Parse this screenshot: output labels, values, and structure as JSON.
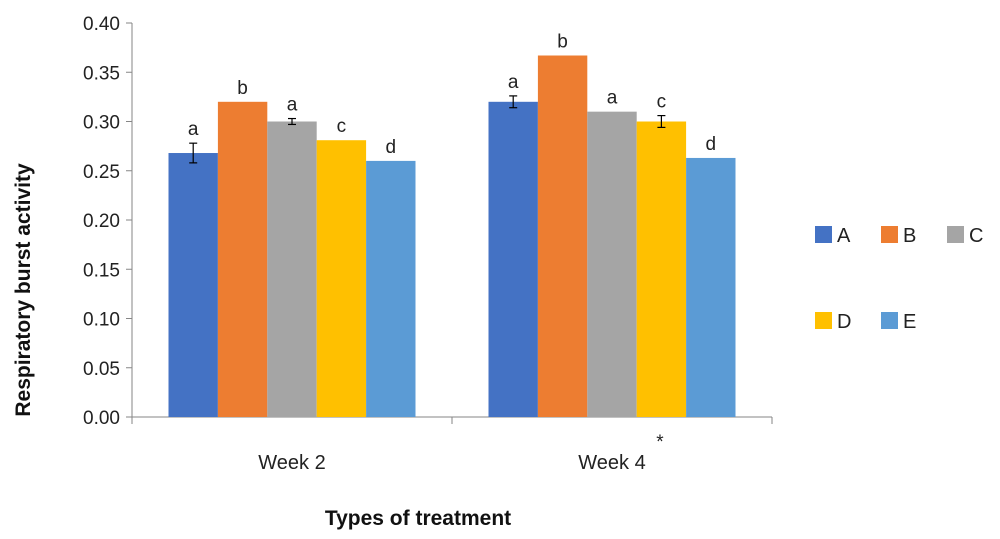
{
  "chart_data": {
    "type": "bar",
    "xlabel": "Types of treatment",
    "ylabel": "Respiratory burst activity",
    "ylim": [
      0,
      0.4
    ],
    "yticks": [
      "0.00",
      "0.05",
      "0.10",
      "0.15",
      "0.20",
      "0.25",
      "0.30",
      "0.35",
      "0.40"
    ],
    "categories": [
      "Week 2",
      "Week 4"
    ],
    "series": [
      {
        "name": "A",
        "color": "#4472C4",
        "values": [
          0.268,
          0.32
        ],
        "errors": [
          0.01,
          0.006
        ],
        "labels": [
          "a",
          "a"
        ]
      },
      {
        "name": "B",
        "color": "#ED7D31",
        "values": [
          0.32,
          0.367
        ],
        "errors": [
          0,
          0
        ],
        "labels": [
          "b",
          "b"
        ]
      },
      {
        "name": "C",
        "color": "#A5A5A5",
        "values": [
          0.3,
          0.31
        ],
        "errors": [
          0.003,
          0
        ],
        "labels": [
          "a",
          "a"
        ]
      },
      {
        "name": "D",
        "color": "#FFC000",
        "values": [
          0.281,
          0.3
        ],
        "errors": [
          0,
          0.006
        ],
        "labels": [
          "c",
          "c"
        ]
      },
      {
        "name": "E",
        "color": "#5B9BD5",
        "values": [
          0.26,
          0.263
        ],
        "errors": [
          0,
          0
        ],
        "labels": [
          "d",
          "d"
        ]
      }
    ],
    "annotations": [
      {
        "category": "Week 4",
        "text": "*"
      }
    ],
    "legend": "right",
    "grid": false
  }
}
